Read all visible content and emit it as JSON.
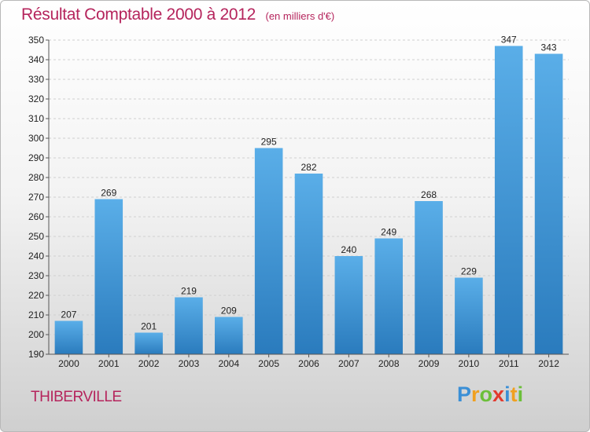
{
  "title": "Résultat Comptable 2000 à 2012",
  "subtitle": "(en milliers d'€)",
  "commune": "THIBERVILLE",
  "logo": {
    "letters": [
      "P",
      "r",
      "o",
      "x",
      "i",
      "t",
      "i"
    ],
    "colors": [
      "#3a8fd6",
      "#f0a020",
      "#6cbf3a",
      "#e23a2e",
      "#3a8fd6",
      "#f0a020",
      "#6cbf3a"
    ]
  },
  "colors": {
    "bar_top": "#5aaee8",
    "bar_bottom": "#2a7bbd",
    "title": "#b5245c"
  },
  "chart_data": {
    "type": "bar",
    "title": "Résultat Comptable 2000 à 2012",
    "ylabel": "en milliers d'€",
    "xlabel": "",
    "categories": [
      "2000",
      "2001",
      "2002",
      "2003",
      "2004",
      "2005",
      "2006",
      "2007",
      "2008",
      "2009",
      "2010",
      "2011",
      "2012"
    ],
    "values": [
      207,
      269,
      201,
      219,
      209,
      295,
      282,
      240,
      249,
      268,
      229,
      347,
      343
    ],
    "ylim": [
      190,
      350
    ],
    "yticks": [
      190,
      200,
      210,
      220,
      230,
      240,
      250,
      260,
      270,
      280,
      290,
      300,
      310,
      320,
      330,
      340,
      350
    ],
    "grid": true
  }
}
